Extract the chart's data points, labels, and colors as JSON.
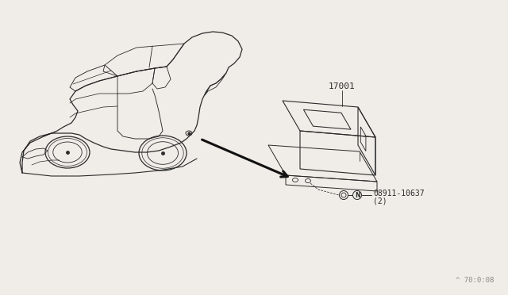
{
  "bg_color": "#f0ede8",
  "line_color": "#2a2a2a",
  "part_label_17001": "17001",
  "part_label_bolt": "08911-10637",
  "part_label_qty": "(2)",
  "watermark": "^ 70:0:08",
  "arrow_color": "#111111"
}
